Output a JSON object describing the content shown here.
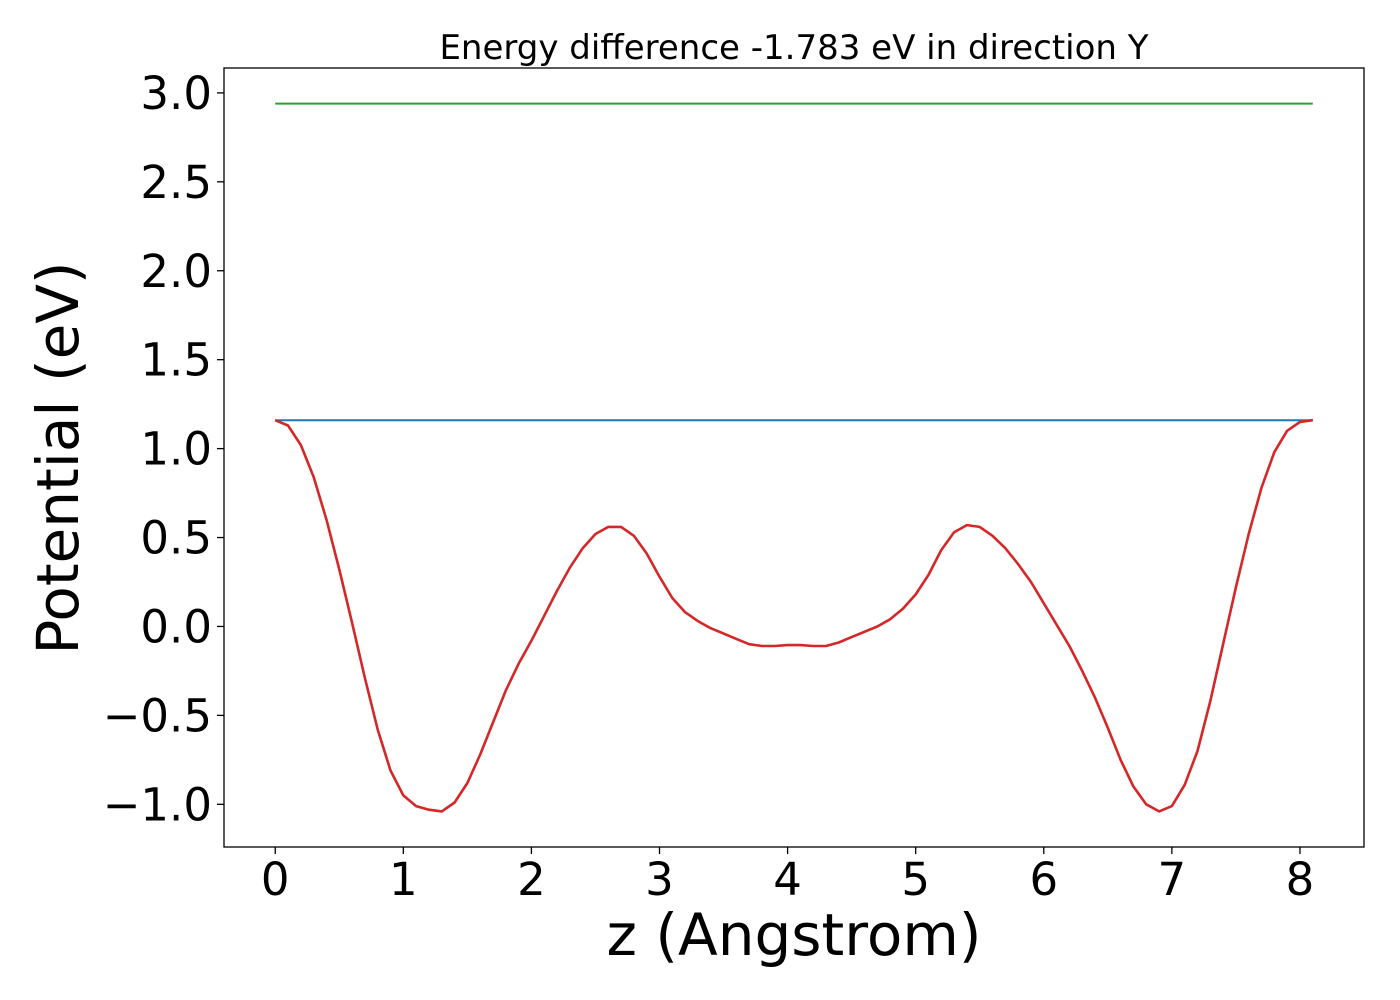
{
  "chart_data": {
    "type": "line",
    "title": "Energy difference -1.783 eV in direction Y",
    "xlabel": "z (Angstrom)",
    "ylabel": "Potential (eV)",
    "xlim": [
      -0.4,
      8.5
    ],
    "ylim": [
      -1.24,
      3.14
    ],
    "xticks": [
      0,
      1,
      2,
      3,
      4,
      5,
      6,
      7,
      8
    ],
    "yticks": [
      3.0,
      2.5,
      2.0,
      1.5,
      1.0,
      0.5,
      0.0,
      -0.5,
      -1.0
    ],
    "xtick_labels": [
      "0",
      "1",
      "2",
      "3",
      "4",
      "5",
      "6",
      "7",
      "8"
    ],
    "ytick_labels": [
      "3.0",
      "2.5",
      "2.0",
      "1.5",
      "1.0",
      "0.5",
      "0.0",
      "−0.5",
      "−1.0"
    ],
    "grid": false,
    "series": [
      {
        "color": "#2ca02c",
        "x": [
          0,
          8.1
        ],
        "y": [
          2.94,
          2.94
        ]
      },
      {
        "color": "#1f77b4",
        "x": [
          0,
          8.1
        ],
        "y": [
          1.16,
          1.16
        ]
      },
      {
        "color": "#d62728",
        "x": [
          0,
          0.1,
          0.2,
          0.3,
          0.4,
          0.5,
          0.6,
          0.7,
          0.8,
          0.9,
          1.0,
          1.1,
          1.2,
          1.3,
          1.4,
          1.5,
          1.6,
          1.7,
          1.8,
          1.9,
          2.0,
          2.1,
          2.2,
          2.3,
          2.4,
          2.5,
          2.6,
          2.7,
          2.8,
          2.9,
          3.0,
          3.1,
          3.2,
          3.3,
          3.4,
          3.5,
          3.6,
          3.7,
          3.8,
          3.9,
          4.0,
          4.05,
          4.1,
          4.2,
          4.3,
          4.4,
          4.5,
          4.6,
          4.7,
          4.8,
          4.9,
          5.0,
          5.1,
          5.2,
          5.3,
          5.4,
          5.5,
          5.6,
          5.7,
          5.8,
          5.9,
          6.0,
          6.1,
          6.2,
          6.3,
          6.4,
          6.5,
          6.6,
          6.7,
          6.8,
          6.9,
          7.0,
          7.1,
          7.2,
          7.3,
          7.4,
          7.5,
          7.6,
          7.7,
          7.8,
          7.9,
          8.0,
          8.1
        ],
        "y": [
          1.16,
          1.13,
          1.02,
          0.84,
          0.6,
          0.32,
          0.02,
          -0.29,
          -0.58,
          -0.81,
          -0.95,
          -1.01,
          -1.03,
          -1.04,
          -0.99,
          -0.88,
          -0.72,
          -0.54,
          -0.36,
          -0.21,
          -0.08,
          0.06,
          0.2,
          0.33,
          0.44,
          0.52,
          0.56,
          0.56,
          0.51,
          0.41,
          0.28,
          0.16,
          0.08,
          0.03,
          -0.01,
          -0.04,
          -0.07,
          -0.1,
          -0.11,
          -0.11,
          -0.105,
          -0.105,
          -0.105,
          -0.11,
          -0.11,
          -0.09,
          -0.06,
          -0.03,
          0.0,
          0.04,
          0.1,
          0.18,
          0.29,
          0.43,
          0.53,
          0.57,
          0.56,
          0.51,
          0.44,
          0.35,
          0.25,
          0.13,
          0.01,
          -0.11,
          -0.25,
          -0.4,
          -0.57,
          -0.75,
          -0.9,
          -1.0,
          -1.04,
          -1.01,
          -0.89,
          -0.7,
          -0.42,
          -0.1,
          0.22,
          0.52,
          0.78,
          0.98,
          1.1,
          1.15,
          1.16
        ]
      }
    ]
  }
}
